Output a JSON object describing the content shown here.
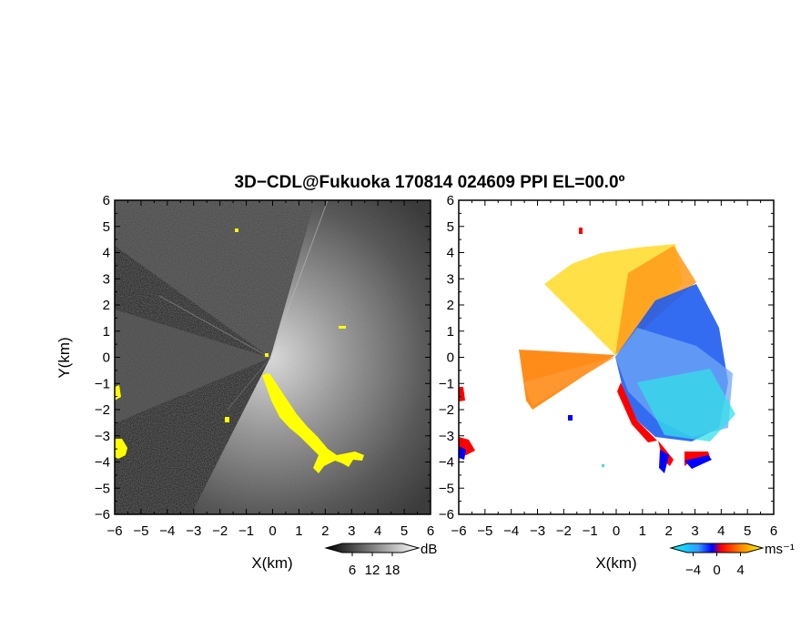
{
  "title": "3D−CDL@Fukuoka 170814 024609 PPI EL=00.0º",
  "chart_data": [
    {
      "type": "heatmap",
      "panel": "left",
      "quantity": "SNR",
      "xlabel": "X(km)",
      "ylabel": "Y(km)",
      "xlim": [
        -6,
        6
      ],
      "ylim": [
        -6,
        6
      ],
      "xticks": [
        -6,
        -5,
        -4,
        -3,
        -2,
        -1,
        0,
        1,
        2,
        3,
        4,
        5,
        6
      ],
      "yticks": [
        -6,
        -5,
        -4,
        -3,
        -2,
        -1,
        0,
        1,
        2,
        3,
        4,
        5,
        6
      ],
      "colorbar": {
        "unit": "dB",
        "ticks": [
          6,
          12,
          18
        ],
        "colors": [
          "#000000",
          "#ffffff"
        ]
      },
      "highlight_color": "#ffff00"
    },
    {
      "type": "heatmap",
      "panel": "right",
      "quantity": "Doppler velocity",
      "xlabel": "X(km)",
      "xlim": [
        -6,
        6
      ],
      "ylim": [
        -6,
        6
      ],
      "xticks": [
        -6,
        -5,
        -4,
        -3,
        -2,
        -1,
        0,
        1,
        2,
        3,
        4,
        5,
        6
      ],
      "yticks": [
        -6,
        -5,
        -4,
        -3,
        -2,
        -1,
        0,
        1,
        2,
        3,
        4,
        5,
        6
      ],
      "colorbar": {
        "unit": "ms⁻¹",
        "ticks": [
          -4,
          0,
          4
        ],
        "colors": [
          "#00ffff",
          "#0000ff",
          "#ff0000",
          "#ff8000",
          "#ffff00"
        ]
      }
    }
  ]
}
